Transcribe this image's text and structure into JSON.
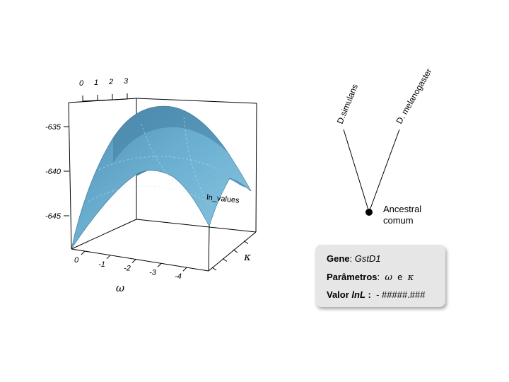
{
  "plot3d": {
    "x_ticks": [
      "0",
      "1",
      "2",
      "3"
    ],
    "z_ticks": [
      "-635",
      "-640",
      "-645"
    ],
    "omega_ticks": [
      "0",
      "-1",
      "-2",
      "-3",
      "-4"
    ],
    "surface_label": "ln_values",
    "omega_label": "ω",
    "kappa_label": "κ",
    "surface_color": "#6aaed0"
  },
  "tree": {
    "leaf_left": "D.simulans",
    "leaf_right": "D. melanogaster",
    "ancestor_line1": "Ancestral",
    "ancestor_line2": "comum"
  },
  "info": {
    "gene_label": "Gene",
    "gene_sep": ": ",
    "gene_value": "GstD1",
    "params_label": "Parâmetros",
    "params_sep": ":",
    "param_omega": "ω",
    "param_and": "e",
    "param_kappa": "κ",
    "lnl_label_prefix": "Valor ",
    "lnl_label_ln": "lnL",
    "lnl_label_suffix": " :",
    "lnl_value": "- #####.###"
  }
}
